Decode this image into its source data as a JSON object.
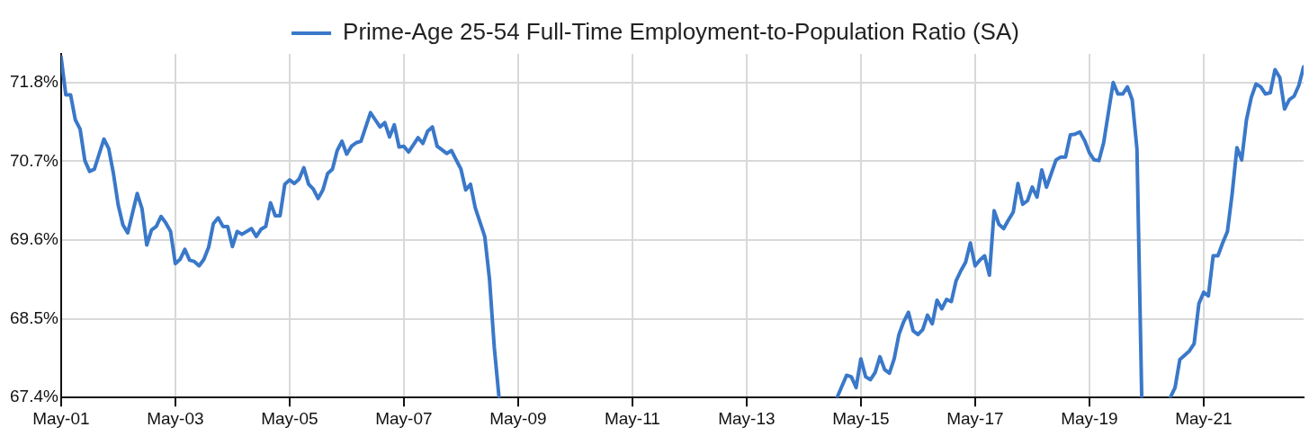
{
  "chart_data": {
    "type": "line",
    "x": [
      "2001-05",
      "2001-06",
      "2001-07",
      "2001-08",
      "2001-09",
      "2001-10",
      "2001-11",
      "2001-12",
      "2002-02",
      "2002-03",
      "2002-04",
      "2002-05",
      "2002-06",
      "2002-07",
      "2002-09",
      "2002-10",
      "2002-11",
      "2002-12",
      "2003-01",
      "2003-02",
      "2003-03",
      "2003-04",
      "2003-05",
      "2003-06",
      "2003-07",
      "2003-08",
      "2003-09",
      "2003-10",
      "2003-11",
      "2003-12",
      "2004-01",
      "2004-02",
      "2004-03",
      "2004-04",
      "2004-05",
      "2004-06",
      "2004-07",
      "2004-09",
      "2004-10",
      "2004-11",
      "2004-12",
      "2005-01",
      "2005-02",
      "2005-03",
      "2005-04",
      "2005-05",
      "2005-06",
      "2005-07",
      "2005-08",
      "2005-09",
      "2005-10",
      "2005-11",
      "2005-12",
      "2006-01",
      "2006-02",
      "2006-03",
      "2006-04",
      "2006-05",
      "2006-06",
      "2006-07",
      "2006-08",
      "2006-10",
      "2006-11",
      "2006-12",
      "2007-01",
      "2007-02",
      "2007-03",
      "2007-04",
      "2007-05",
      "2007-06",
      "2007-08",
      "2007-09",
      "2007-10",
      "2007-11",
      "2007-12",
      "2008-02",
      "2008-03",
      "2008-05",
      "2008-06",
      "2008-07",
      "2008-08",
      "2008-10",
      "2008-11",
      "2008-12",
      "2009-01",
      "2011-12",
      "2014-12",
      "2015-02",
      "2015-03",
      "2015-04",
      "2015-05",
      "2015-06",
      "2015-07",
      "2015-08",
      "2015-09",
      "2015-10",
      "2015-11",
      "2015-12",
      "2016-01",
      "2016-02",
      "2016-03",
      "2016-04",
      "2016-05",
      "2016-06",
      "2016-07",
      "2016-08",
      "2016-09",
      "2016-10",
      "2016-11",
      "2016-12",
      "2017-01",
      "2017-02",
      "2017-03",
      "2017-04",
      "2017-05",
      "2017-06",
      "2017-07",
      "2017-08",
      "2017-09",
      "2017-10",
      "2017-11",
      "2017-12",
      "2018-01",
      "2018-02",
      "2018-03",
      "2018-04",
      "2018-05",
      "2018-06",
      "2018-07",
      "2018-08",
      "2018-09",
      "2018-10",
      "2018-11",
      "2018-12",
      "2019-01",
      "2019-02",
      "2019-03",
      "2019-04",
      "2019-05",
      "2019-06",
      "2019-07",
      "2019-08",
      "2019-09",
      "2019-10",
      "2019-11",
      "2019-12",
      "2020-01",
      "2020-02",
      "2020-03",
      "2020-04",
      "2020-07",
      "2020-10",
      "2020-11",
      "2020-12",
      "2021-01",
      "2021-02",
      "2021-03",
      "2021-04",
      "2021-05",
      "2021-06",
      "2021-07",
      "2021-08",
      "2021-09",
      "2021-10",
      "2021-11",
      "2021-12",
      "2022-01",
      "2022-02",
      "2022-03",
      "2022-04",
      "2022-05",
      "2022-06",
      "2022-07",
      "2022-08",
      "2022-09",
      "2022-10",
      "2022-11",
      "2022-12",
      "2023-01",
      "2023-02"
    ],
    "series": [
      {
        "name": "Prime-Age 25-54 Full-Time Employment-to-Population Ratio (SA)",
        "color": "#3a78c9",
        "values": [
          72.16,
          71.63,
          71.63,
          71.28,
          71.15,
          70.71,
          70.56,
          70.59,
          71.01,
          70.88,
          70.53,
          70.09,
          69.81,
          69.7,
          70.25,
          70.04,
          69.53,
          69.74,
          69.79,
          69.93,
          69.84,
          69.72,
          69.27,
          69.33,
          69.47,
          69.32,
          69.3,
          69.24,
          69.33,
          69.5,
          69.83,
          69.91,
          69.79,
          69.79,
          69.51,
          69.72,
          69.68,
          69.76,
          69.65,
          69.75,
          69.79,
          70.12,
          69.94,
          69.94,
          70.38,
          70.44,
          70.39,
          70.45,
          70.61,
          70.38,
          70.31,
          70.18,
          70.3,
          70.53,
          70.59,
          70.85,
          70.98,
          70.8,
          70.91,
          70.96,
          70.98,
          71.38,
          71.28,
          71.18,
          71.24,
          71.04,
          71.21,
          70.9,
          70.91,
          70.83,
          71.03,
          70.95,
          71.12,
          71.18,
          70.91,
          70.81,
          70.85,
          70.59,
          70.3,
          70.38,
          70.05,
          69.65,
          69.05,
          68.1,
          67.4,
          null,
          67.4,
          67.71,
          67.69,
          67.54,
          67.94,
          67.69,
          67.65,
          67.75,
          67.97,
          67.79,
          67.74,
          67.94,
          68.28,
          68.46,
          68.59,
          68.33,
          68.28,
          68.35,
          68.55,
          68.43,
          68.76,
          68.64,
          68.77,
          68.74,
          69.03,
          69.17,
          69.29,
          69.56,
          69.24,
          69.32,
          69.38,
          69.11,
          70.01,
          69.82,
          69.76,
          69.88,
          69.99,
          70.39,
          70.1,
          70.15,
          70.34,
          70.2,
          70.58,
          70.34,
          70.53,
          70.72,
          70.76,
          70.76,
          71.07,
          71.08,
          71.11,
          70.99,
          70.82,
          70.72,
          70.71,
          70.96,
          71.38,
          71.8,
          71.64,
          71.64,
          71.74,
          71.56,
          70.87,
          67.4,
          null,
          67.4,
          67.54,
          67.93,
          67.99,
          68.05,
          68.15,
          68.71,
          68.87,
          68.82,
          69.38,
          69.38,
          69.56,
          69.72,
          70.25,
          70.89,
          70.72,
          71.28,
          71.59,
          71.78,
          71.74,
          71.64,
          71.66,
          71.98,
          71.87,
          71.43,
          71.56,
          71.61,
          71.76,
          72.02
        ]
      }
    ],
    "xlim": [
      "2001-05",
      "2023-02"
    ],
    "xticks": [
      {
        "value": "2001-05",
        "label": "May-01"
      },
      {
        "value": "2003-05",
        "label": "May-03"
      },
      {
        "value": "2005-05",
        "label": "May-05"
      },
      {
        "value": "2007-05",
        "label": "May-07"
      },
      {
        "value": "2009-05",
        "label": "May-09"
      },
      {
        "value": "2011-05",
        "label": "May-11"
      },
      {
        "value": "2013-05",
        "label": "May-13"
      },
      {
        "value": "2015-05",
        "label": "May-15"
      },
      {
        "value": "2017-05",
        "label": "May-17"
      },
      {
        "value": "2019-05",
        "label": "May-19"
      },
      {
        "value": "2021-05",
        "label": "May-21"
      }
    ],
    "ylim": [
      67.4,
      72.2
    ],
    "yticks": [
      {
        "value": 67.4,
        "label": "67.4%"
      },
      {
        "value": 68.5,
        "label": "68.5%"
      },
      {
        "value": 69.6,
        "label": "69.6%"
      },
      {
        "value": 70.7,
        "label": "70.7%"
      },
      {
        "value": 71.8,
        "label": "71.8%"
      }
    ],
    "grid": true,
    "legend": "top",
    "marker": "none",
    "line_style": "solid"
  }
}
